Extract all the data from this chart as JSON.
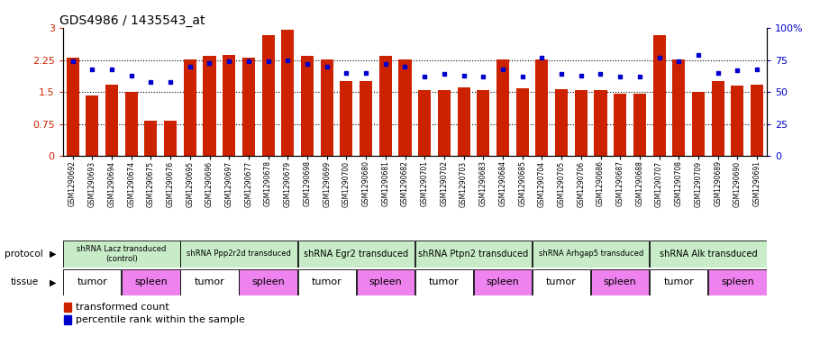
{
  "title": "GDS4986 / 1435543_at",
  "samples": [
    "GSM1290692",
    "GSM1290693",
    "GSM1290694",
    "GSM1290674",
    "GSM1290675",
    "GSM1290676",
    "GSM1290695",
    "GSM1290696",
    "GSM1290697",
    "GSM1290677",
    "GSM1290678",
    "GSM1290679",
    "GSM1290698",
    "GSM1290699",
    "GSM1290700",
    "GSM1290680",
    "GSM1290681",
    "GSM1290682",
    "GSM1290701",
    "GSM1290702",
    "GSM1290703",
    "GSM1290683",
    "GSM1290684",
    "GSM1290685",
    "GSM1290704",
    "GSM1290705",
    "GSM1290706",
    "GSM1290686",
    "GSM1290687",
    "GSM1290688",
    "GSM1290707",
    "GSM1290708",
    "GSM1290709",
    "GSM1290689",
    "GSM1290690",
    "GSM1290691"
  ],
  "bar_values": [
    2.32,
    1.42,
    1.67,
    1.5,
    0.82,
    0.82,
    2.26,
    2.36,
    2.38,
    2.3,
    2.85,
    2.97,
    2.35,
    2.26,
    1.75,
    1.75,
    2.35,
    2.26,
    1.55,
    1.55,
    1.6,
    1.55,
    2.26,
    1.58,
    2.26,
    1.57,
    1.55,
    1.55,
    1.47,
    1.47,
    2.85,
    2.26,
    1.5,
    1.75,
    1.65,
    1.68
  ],
  "percentile_values": [
    74,
    68,
    68,
    63,
    58,
    58,
    70,
    73,
    74,
    74,
    74,
    75,
    72,
    70,
    65,
    65,
    72,
    70,
    62,
    64,
    63,
    62,
    68,
    62,
    77,
    64,
    63,
    64,
    62,
    62,
    77,
    74,
    79,
    65,
    67,
    68
  ],
  "protocols": [
    {
      "label": "shRNA Lacz transduced\n(control)",
      "start": 0,
      "end": 6,
      "color": "#c8ecc8"
    },
    {
      "label": "shRNA Ppp2r2d transduced",
      "start": 6,
      "end": 12,
      "color": "#c8ecc8"
    },
    {
      "label": "shRNA Egr2 transduced",
      "start": 12,
      "end": 18,
      "color": "#c8ecc8"
    },
    {
      "label": "shRNA Ptpn2 transduced",
      "start": 18,
      "end": 24,
      "color": "#c8ecc8"
    },
    {
      "label": "shRNA Arhgap5 transduced",
      "start": 24,
      "end": 30,
      "color": "#c8ecc8"
    },
    {
      "label": "shRNA Alk transduced",
      "start": 30,
      "end": 36,
      "color": "#c8ecc8"
    }
  ],
  "tissues": [
    {
      "label": "tumor",
      "start": 0,
      "end": 3,
      "color": "#ffffff"
    },
    {
      "label": "spleen",
      "start": 3,
      "end": 6,
      "color": "#ee82ee"
    },
    {
      "label": "tumor",
      "start": 6,
      "end": 9,
      "color": "#ffffff"
    },
    {
      "label": "spleen",
      "start": 9,
      "end": 12,
      "color": "#ee82ee"
    },
    {
      "label": "tumor",
      "start": 12,
      "end": 15,
      "color": "#ffffff"
    },
    {
      "label": "spleen",
      "start": 15,
      "end": 18,
      "color": "#ee82ee"
    },
    {
      "label": "tumor",
      "start": 18,
      "end": 21,
      "color": "#ffffff"
    },
    {
      "label": "spleen",
      "start": 21,
      "end": 24,
      "color": "#ee82ee"
    },
    {
      "label": "tumor",
      "start": 24,
      "end": 27,
      "color": "#ffffff"
    },
    {
      "label": "spleen",
      "start": 27,
      "end": 30,
      "color": "#ee82ee"
    },
    {
      "label": "tumor",
      "start": 30,
      "end": 33,
      "color": "#ffffff"
    },
    {
      "label": "spleen",
      "start": 33,
      "end": 36,
      "color": "#ee82ee"
    }
  ],
  "bar_color": "#cc2200",
  "dot_color": "#0000cc",
  "ylim_left": [
    0,
    3
  ],
  "ylim_right": [
    0,
    100
  ],
  "yticks_left": [
    0,
    0.75,
    1.5,
    2.25,
    3.0
  ],
  "yticks_right": [
    0,
    25,
    50,
    75,
    100
  ],
  "ytick_labels_left": [
    "0",
    "0.75",
    "1.5",
    "2.25",
    "3"
  ],
  "ytick_labels_right": [
    "0",
    "25",
    "50",
    "75",
    "100%"
  ],
  "hlines": [
    0.75,
    1.5,
    2.25
  ]
}
